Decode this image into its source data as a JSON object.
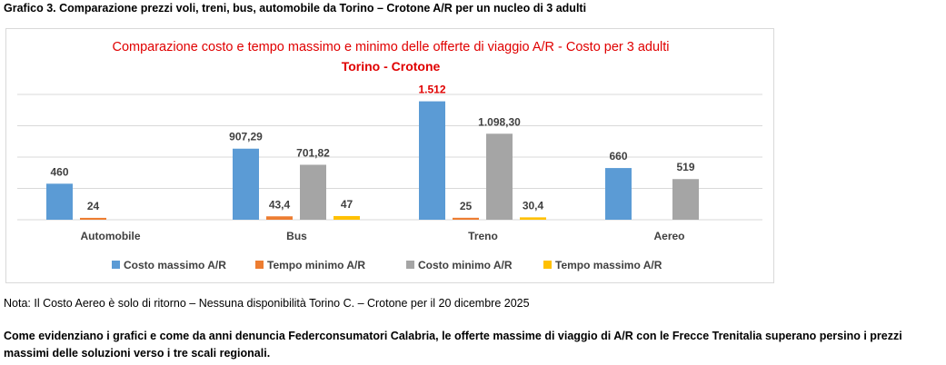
{
  "page": {
    "title": "Grafico 3. Comparazione prezzi voli, treni, bus, automobile da Torino – Crotone A/R per un nucleo di 3 adulti",
    "note": "Nota: Il Costo Aereo è solo di ritorno – Nessuna disponibilità Torino C. – Crotone per il 20 dicembre 2025",
    "comment": "Come evidenziano i grafici e come da anni denuncia Federconsumatori Calabria, le offerte massime di viaggio di A/R con le Frecce Trenitalia superano persino i prezzi massimi delle soluzioni verso i tre scali regionali."
  },
  "chart_data": {
    "type": "bar",
    "title": "Comparazione costo e tempo massimo e minimo delle offerte di viaggio A/R - Costo per 3 adulti",
    "subtitle": "Torino - Crotone",
    "title_color": "#e00000",
    "categories": [
      "Automobile",
      "Bus",
      "Treno",
      "Aereo"
    ],
    "ylim": [
      0,
      1600
    ],
    "grid": true,
    "legend_position": "bottom",
    "series": [
      {
        "name": "Costo massimo A/R",
        "color": "#5b9bd5",
        "values": [
          460,
          907.29,
          1512,
          660
        ],
        "labels": [
          "460",
          "907,29",
          "1.512",
          "660"
        ]
      },
      {
        "name": "Tempo minimo A/R",
        "color": "#ed7d31",
        "values": [
          24,
          43.4,
          25,
          null
        ],
        "labels": [
          "24",
          "43,4",
          "25",
          null
        ]
      },
      {
        "name": "Costo minimo A/R",
        "color": "#a5a5a5",
        "values": [
          null,
          701.82,
          1098.3,
          519
        ],
        "labels": [
          null,
          "701,82",
          "1.098,30",
          "519"
        ]
      },
      {
        "name": "Tempo massimo A/R",
        "color": "#ffc000",
        "values": [
          null,
          47,
          30.4,
          null
        ],
        "labels": [
          null,
          "47",
          "30,4",
          null
        ]
      }
    ],
    "highlight_label": {
      "series": 0,
      "category": 2,
      "color": "#e00000"
    }
  }
}
